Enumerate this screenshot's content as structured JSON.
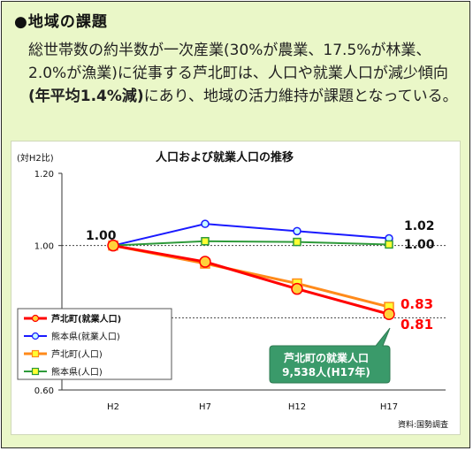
{
  "section": {
    "bullet": "●",
    "title": "地域の課題",
    "paragraph_before": "総世帯数の約半数が一次産業(30%が農業、17.5%が林業、2.0%が漁業)に従事する芦北町は、人口や就業人口が減少傾向",
    "paragraph_emphasis": "(年平均1.4%減)",
    "paragraph_after": "にあり、地域の活力維持が課題となっている。"
  },
  "colors": {
    "panel_bg": "#eaf7c8",
    "red": "#ff0000",
    "blue": "#1a1aff",
    "orange": "#ff8a1a",
    "green": "#2e9a3a",
    "callout_bg": "#3a9a6a",
    "point_fill_red": "#ffd23a",
    "point_fill_blue": "#c8ffff",
    "point_fill_orange": "#ffff33",
    "point_fill_green": "#ffff33"
  },
  "chart_data": {
    "type": "line",
    "title": "人口および就業人口の推移",
    "unit_label": "(対H2比)",
    "categories": [
      "H2",
      "H7",
      "H12",
      "H17"
    ],
    "ylim": [
      0.6,
      1.2
    ],
    "yticks": [
      "0.60",
      "0.80",
      "1.00",
      "1.20"
    ],
    "reference_lines": [
      0.8,
      1.0
    ],
    "series": [
      {
        "name": "芦北町(就業人口)",
        "values": [
          1.0,
          0.955,
          0.88,
          0.81
        ],
        "color": "#ff0000",
        "fill": "#ffd23a",
        "marker": "circle"
      },
      {
        "name": "熊本県(就業人口)",
        "values": [
          1.0,
          1.06,
          1.04,
          1.02
        ],
        "color": "#1a1aff",
        "fill": "#c8ffff",
        "marker": "circle"
      },
      {
        "name": "芦北町(人口)",
        "values": [
          1.0,
          0.95,
          0.895,
          0.83
        ],
        "color": "#ff8a1a",
        "fill": "#ffff33",
        "marker": "square"
      },
      {
        "name": "熊本県(人口)",
        "values": [
          1.0,
          1.012,
          1.01,
          1.003
        ],
        "color": "#2e9a3a",
        "fill": "#ffff33",
        "marker": "square"
      }
    ],
    "data_labels": [
      {
        "text": "1.00",
        "color": "#111111"
      },
      {
        "text": "1.02",
        "color": "#111111"
      },
      {
        "text": "1.00",
        "color": "#111111"
      },
      {
        "text": "0.83",
        "color": "#ff0000"
      },
      {
        "text": "0.81",
        "color": "#ff0000"
      }
    ],
    "legend": "bottom-left",
    "callout_lines": [
      "芦北町の就業人口",
      "9,538人(H17年)"
    ],
    "source": "資料:国勢調査"
  }
}
